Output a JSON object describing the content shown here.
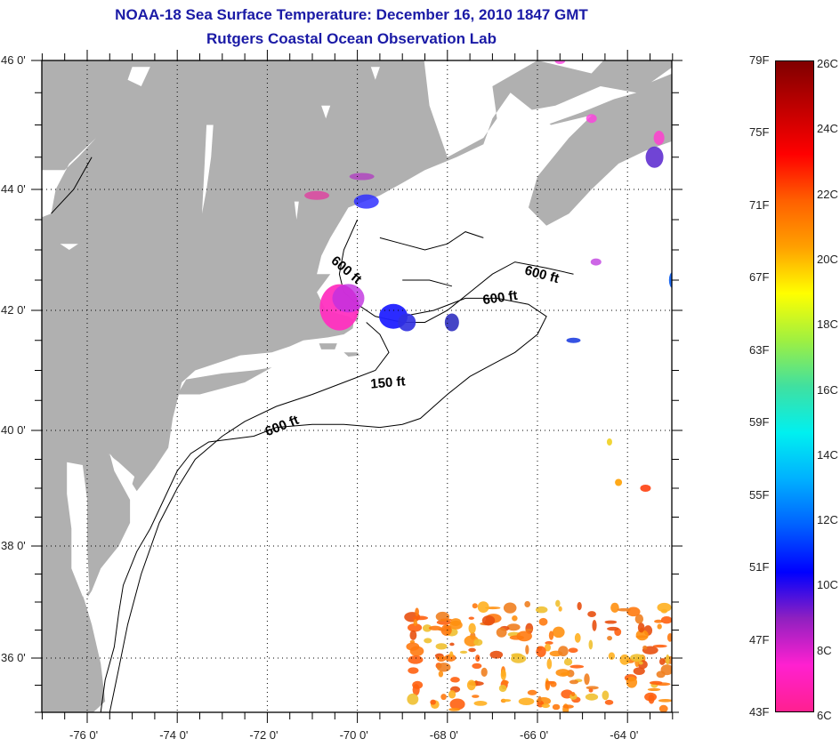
{
  "header": {
    "title": "NOAA-18 Sea Surface Temperature:  December 16, 2010 1847 GMT",
    "subtitle": "Rutgers Coastal Ocean Observation Lab"
  },
  "map": {
    "lat_range": [
      35,
      46
    ],
    "lon_range": [
      -77,
      -63
    ],
    "lat_ticks": [
      "46 0'",
      "44 0'",
      "42 0'",
      "40 0'",
      "38 0'",
      "36 0'"
    ],
    "lat_values": [
      46,
      44,
      42,
      40,
      38,
      36
    ],
    "lon_ticks": [
      "-76 0'",
      "-74 0'",
      "-72 0'",
      "-70 0'",
      "-68 0'",
      "-66 0'",
      "-64 0'"
    ],
    "lon_values": [
      -76,
      -74,
      -72,
      -70,
      -68,
      -66,
      -64
    ],
    "land_color": "#b0b0b0",
    "ocean_color": "#ffffff",
    "contour_labels": [
      {
        "text": "600 ft",
        "lon": -70.6,
        "lat": 42.8
      },
      {
        "text": "600 ft",
        "lon": -66.3,
        "lat": 42.6
      },
      {
        "text": "600 ft",
        "lon": -67.2,
        "lat": 42.1
      },
      {
        "text": "150 ft",
        "lon": -69.7,
        "lat": 40.7
      },
      {
        "text": "600 ft",
        "lon": -72.0,
        "lat": 39.9
      }
    ]
  },
  "colorbar": {
    "fahrenheit_labels": [
      "79F",
      "75F",
      "71F",
      "67F",
      "63F",
      "59F",
      "55F",
      "51F",
      "47F",
      "43F"
    ],
    "fahrenheit_values": [
      79,
      75,
      71,
      67,
      63,
      59,
      55,
      51,
      47,
      43
    ],
    "celsius_labels": [
      "26C",
      "24C",
      "22C",
      "20C",
      "18C",
      "16C",
      "14C",
      "12C",
      "10C",
      "8C",
      "6C"
    ],
    "celsius_values": [
      26,
      24,
      22,
      20,
      18,
      16,
      14,
      12,
      10,
      8,
      6
    ],
    "range_f": [
      43,
      79
    ],
    "stops": [
      "#ff2090",
      "#ff20d0",
      "#9020c0",
      "#0000ff",
      "#0060ff",
      "#00b0ff",
      "#00f0f0",
      "#40e0a0",
      "#a0f040",
      "#ffff00",
      "#ffa000",
      "#ff6000",
      "#ff0000",
      "#c00000",
      "#800000"
    ]
  }
}
